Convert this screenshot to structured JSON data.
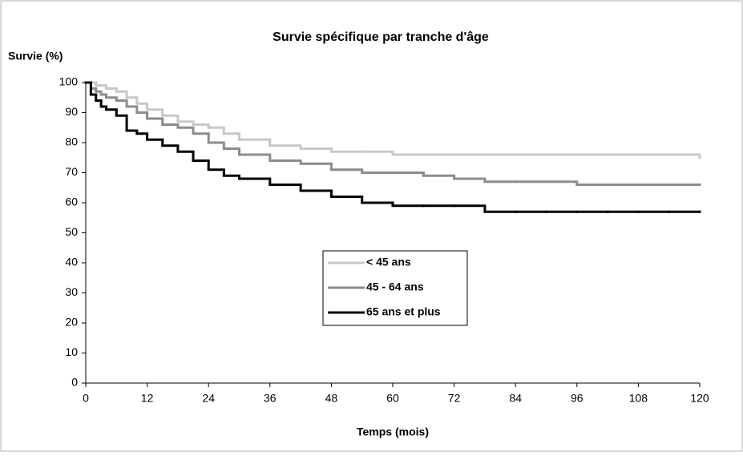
{
  "chart_data": {
    "type": "line",
    "step": "post",
    "title": "Survie spécifique par tranche d'âge",
    "y_label": "Survie (%)",
    "x_label": "Temps (mois)",
    "x": [
      0,
      1,
      2,
      3,
      4,
      6,
      8,
      10,
      12,
      15,
      18,
      21,
      24,
      27,
      30,
      36,
      42,
      48,
      54,
      60,
      66,
      72,
      78,
      84,
      90,
      96,
      102,
      108,
      114,
      120
    ],
    "series": [
      {
        "name": "< 45 ans",
        "color": "#c8c8c8",
        "values": [
          100,
          100,
          99,
          99,
          98,
          97,
          95,
          93,
          91,
          89,
          87,
          86,
          85,
          83,
          81,
          79,
          78,
          77,
          77,
          76,
          76,
          76,
          76,
          76,
          76,
          76,
          76,
          76,
          76,
          75
        ]
      },
      {
        "name": "45 - 64 ans",
        "color": "#8c8c8c",
        "values": [
          100,
          98,
          97,
          96,
          95,
          94,
          92,
          90,
          88,
          86,
          85,
          83,
          80,
          78,
          76,
          74,
          73,
          71,
          70,
          70,
          69,
          68,
          67,
          67,
          67,
          66,
          66,
          66,
          66,
          66
        ]
      },
      {
        "name": "65 ans et plus",
        "color": "#000000",
        "values": [
          100,
          96,
          94,
          92,
          91,
          89,
          84,
          83,
          81,
          79,
          77,
          74,
          71,
          69,
          68,
          66,
          64,
          62,
          60,
          59,
          59,
          59,
          57,
          57,
          57,
          57,
          57,
          57,
          57,
          57
        ]
      }
    ],
    "xlim": [
      0,
      120
    ],
    "xticks": [
      0,
      12,
      24,
      36,
      48,
      60,
      72,
      84,
      96,
      108,
      120
    ],
    "ylim": [
      0,
      100
    ],
    "yticks": [
      0,
      10,
      20,
      30,
      40,
      50,
      60,
      70,
      80,
      90,
      100
    ],
    "grid": false,
    "legend": "center"
  }
}
